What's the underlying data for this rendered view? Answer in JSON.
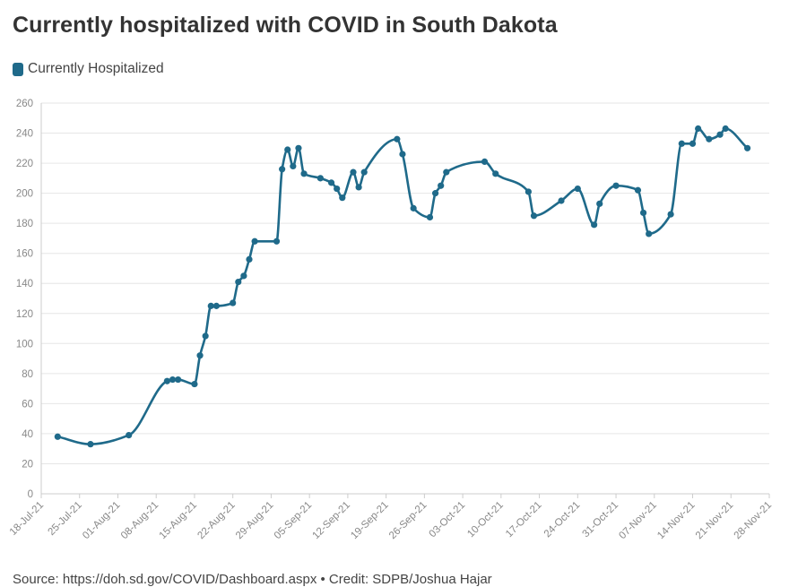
{
  "title": "Currently hospitalized with COVID in South Dakota",
  "source": "Source: https://doh.sd.gov/COVID/Dashboard.aspx • Credit: SDPB/Joshua Hajar",
  "colors": {
    "series": "#1f6a8a",
    "grid": "#e6e6e6",
    "axis": "#cccccc",
    "tick_text": "#888888"
  },
  "chart_data": {
    "type": "line",
    "title": "Currently hospitalized with COVID in South Dakota",
    "xlabel": "",
    "ylabel": "",
    "ylim": [
      0,
      260
    ],
    "yticks": [
      0,
      20,
      40,
      60,
      80,
      100,
      120,
      140,
      160,
      180,
      200,
      220,
      240,
      260
    ],
    "xlim": [
      "2021-07-18",
      "2021-11-28"
    ],
    "xticks": [
      {
        "date": "2021-07-18",
        "label": "18-Jul-21"
      },
      {
        "date": "2021-07-25",
        "label": "25-Jul-21"
      },
      {
        "date": "2021-08-01",
        "label": "01-Aug-21"
      },
      {
        "date": "2021-08-08",
        "label": "08-Aug-21"
      },
      {
        "date": "2021-08-15",
        "label": "15-Aug-21"
      },
      {
        "date": "2021-08-22",
        "label": "22-Aug-21"
      },
      {
        "date": "2021-08-29",
        "label": "29-Aug-21"
      },
      {
        "date": "2021-09-05",
        "label": "05-Sep-21"
      },
      {
        "date": "2021-09-12",
        "label": "12-Sep-21"
      },
      {
        "date": "2021-09-19",
        "label": "19-Sep-21"
      },
      {
        "date": "2021-09-26",
        "label": "26-Sep-21"
      },
      {
        "date": "2021-10-03",
        "label": "03-Oct-21"
      },
      {
        "date": "2021-10-10",
        "label": "10-Oct-21"
      },
      {
        "date": "2021-10-17",
        "label": "17-Oct-21"
      },
      {
        "date": "2021-10-24",
        "label": "24-Oct-21"
      },
      {
        "date": "2021-10-31",
        "label": "31-Oct-21"
      },
      {
        "date": "2021-11-07",
        "label": "07-Nov-21"
      },
      {
        "date": "2021-11-14",
        "label": "14-Nov-21"
      },
      {
        "date": "2021-11-21",
        "label": "21-Nov-21"
      },
      {
        "date": "2021-11-28",
        "label": "28-Nov-21"
      }
    ],
    "grid": true,
    "legend": "top-left",
    "series": [
      {
        "name": "Currently Hospitalized",
        "color": "#1f6a8a",
        "points": [
          {
            "x": "2021-07-21",
            "y": 38
          },
          {
            "x": "2021-07-27",
            "y": 33
          },
          {
            "x": "2021-08-03",
            "y": 39
          },
          {
            "x": "2021-08-10",
            "y": 75
          },
          {
            "x": "2021-08-11",
            "y": 76
          },
          {
            "x": "2021-08-12",
            "y": 76
          },
          {
            "x": "2021-08-15",
            "y": 73
          },
          {
            "x": "2021-08-16",
            "y": 92
          },
          {
            "x": "2021-08-17",
            "y": 105
          },
          {
            "x": "2021-08-18",
            "y": 125
          },
          {
            "x": "2021-08-19",
            "y": 125
          },
          {
            "x": "2021-08-22",
            "y": 127
          },
          {
            "x": "2021-08-23",
            "y": 141
          },
          {
            "x": "2021-08-24",
            "y": 145
          },
          {
            "x": "2021-08-25",
            "y": 156
          },
          {
            "x": "2021-08-26",
            "y": 168
          },
          {
            "x": "2021-08-30",
            "y": 168
          },
          {
            "x": "2021-08-31",
            "y": 216
          },
          {
            "x": "2021-09-01",
            "y": 229
          },
          {
            "x": "2021-09-02",
            "y": 218
          },
          {
            "x": "2021-09-03",
            "y": 230
          },
          {
            "x": "2021-09-04",
            "y": 213
          },
          {
            "x": "2021-09-07",
            "y": 210
          },
          {
            "x": "2021-09-09",
            "y": 207
          },
          {
            "x": "2021-09-10",
            "y": 203
          },
          {
            "x": "2021-09-11",
            "y": 197
          },
          {
            "x": "2021-09-13",
            "y": 214
          },
          {
            "x": "2021-09-14",
            "y": 204
          },
          {
            "x": "2021-09-15",
            "y": 214
          },
          {
            "x": "2021-09-21",
            "y": 236
          },
          {
            "x": "2021-09-22",
            "y": 226
          },
          {
            "x": "2021-09-24",
            "y": 190
          },
          {
            "x": "2021-09-27",
            "y": 184
          },
          {
            "x": "2021-09-28",
            "y": 200
          },
          {
            "x": "2021-09-29",
            "y": 205
          },
          {
            "x": "2021-09-30",
            "y": 214
          },
          {
            "x": "2021-10-07",
            "y": 221
          },
          {
            "x": "2021-10-09",
            "y": 213
          },
          {
            "x": "2021-10-15",
            "y": 201
          },
          {
            "x": "2021-10-16",
            "y": 185
          },
          {
            "x": "2021-10-21",
            "y": 195
          },
          {
            "x": "2021-10-24",
            "y": 203
          },
          {
            "x": "2021-10-27",
            "y": 179
          },
          {
            "x": "2021-10-28",
            "y": 193
          },
          {
            "x": "2021-10-31",
            "y": 205
          },
          {
            "x": "2021-11-04",
            "y": 202
          },
          {
            "x": "2021-11-05",
            "y": 187
          },
          {
            "x": "2021-11-06",
            "y": 173
          },
          {
            "x": "2021-11-10",
            "y": 186
          },
          {
            "x": "2021-11-12",
            "y": 233
          },
          {
            "x": "2021-11-14",
            "y": 233
          },
          {
            "x": "2021-11-15",
            "y": 243
          },
          {
            "x": "2021-11-17",
            "y": 236
          },
          {
            "x": "2021-11-19",
            "y": 239
          },
          {
            "x": "2021-11-20",
            "y": 243
          },
          {
            "x": "2021-11-24",
            "y": 230
          }
        ]
      }
    ]
  }
}
